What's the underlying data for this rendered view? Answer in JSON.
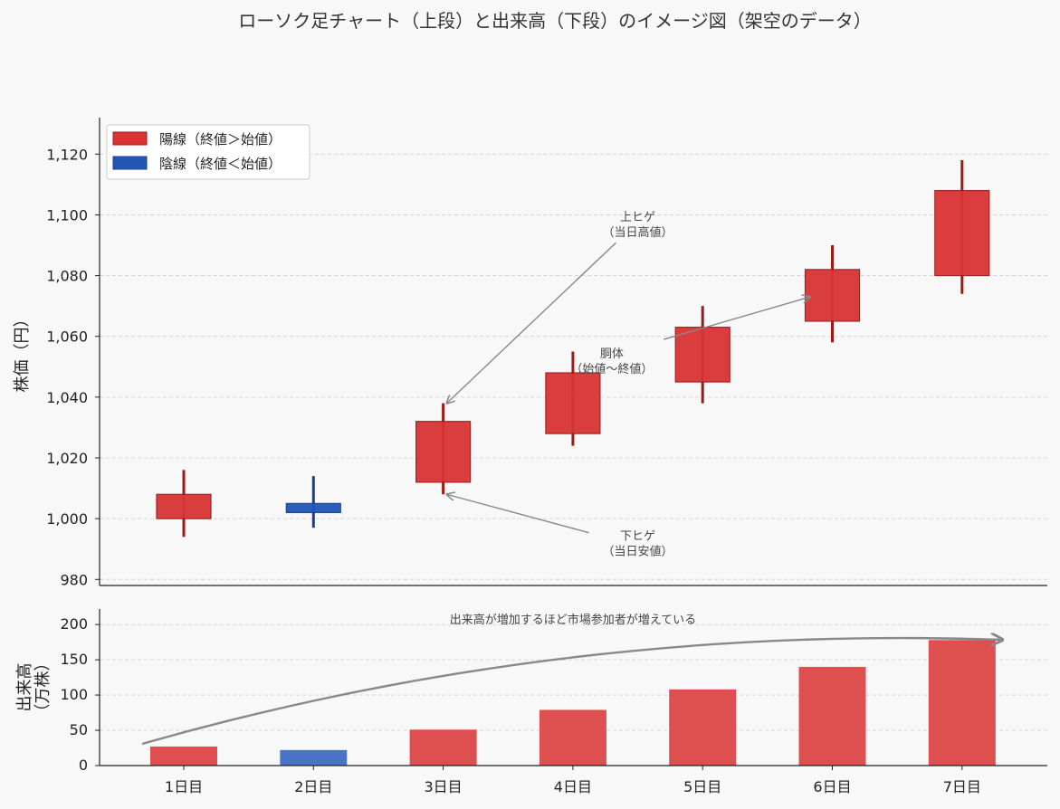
{
  "title": "ローソク足チャート（上段）と出来高（下段）のイメージ図（架空のデータ）",
  "colors": {
    "up": "#d93434",
    "down": "#2255b5",
    "up_wick": "#9e1a1a",
    "down_wick": "#1a3f8f",
    "volume_up": "#de4f4f",
    "volume_down": "#4a74c8",
    "annotation": "#888888",
    "grid": "#cccccc"
  },
  "chart_data": [
    {
      "type": "candlestick",
      "ylabel": "株価（円）",
      "ylim": [
        978,
        1132
      ],
      "yticks": [
        980,
        1000,
        1020,
        1040,
        1060,
        1080,
        1100,
        1120
      ],
      "ytick_labels": [
        "980",
        "1,000",
        "1,020",
        "1,040",
        "1,060",
        "1,080",
        "1,100",
        "1,120"
      ],
      "grid": true,
      "legend_placement": "top-left",
      "legend": [
        {
          "label": "陽線（終値＞始値）",
          "kind": "up"
        },
        {
          "label": "陰線（終値＜始値）",
          "kind": "down"
        }
      ],
      "categories": [
        "1日目",
        "2日目",
        "3日目",
        "4日目",
        "5日目",
        "6日目",
        "7日目"
      ],
      "candles": [
        {
          "open": 1000,
          "high": 1016,
          "low": 994,
          "close": 1008
        },
        {
          "open": 1005,
          "high": 1014,
          "low": 997,
          "close": 1002
        },
        {
          "open": 1012,
          "high": 1038,
          "low": 1008,
          "close": 1032
        },
        {
          "open": 1028,
          "high": 1055,
          "low": 1024,
          "close": 1048
        },
        {
          "open": 1045,
          "high": 1070,
          "low": 1038,
          "close": 1063
        },
        {
          "open": 1065,
          "high": 1090,
          "low": 1058,
          "close": 1082
        },
        {
          "open": 1080,
          "high": 1118,
          "low": 1074,
          "close": 1108
        }
      ],
      "annotations": [
        {
          "lines": [
            "上ヒゲ",
            "（当日高値）"
          ],
          "text_at": [
            3.5,
            1098
          ],
          "points_to": [
            2.0,
            1038
          ]
        },
        {
          "lines": [
            "胴体",
            "（始値〜終値）"
          ],
          "text_at": [
            3.3,
            1053
          ],
          "points_to": [
            4.8,
            1073
          ],
          "arrow_from": [
            3.7,
            1059
          ]
        },
        {
          "lines": [
            "下ヒゲ",
            "（当日安値）"
          ],
          "text_at": [
            3.5,
            993
          ],
          "points_to": [
            2.0,
            1008
          ]
        }
      ]
    },
    {
      "type": "bar",
      "ylabel": "出来高\n（万株）",
      "ylabel_lines": [
        "出来高",
        "（万株）"
      ],
      "ylim": [
        0,
        222
      ],
      "yticks": [
        0,
        50,
        100,
        150,
        200
      ],
      "grid": true,
      "categories": [
        "1日目",
        "2日目",
        "3日目",
        "4日目",
        "5日目",
        "6日目",
        "7日目"
      ],
      "values": [
        27,
        22,
        51,
        79,
        108,
        140,
        178
      ],
      "kinds": [
        "up",
        "down",
        "up",
        "up",
        "up",
        "up",
        "up"
      ],
      "trend_annotation": {
        "text": "出来高が増加するほど市場参加者が増えている",
        "text_at": [
          3.0,
          208
        ]
      }
    }
  ]
}
